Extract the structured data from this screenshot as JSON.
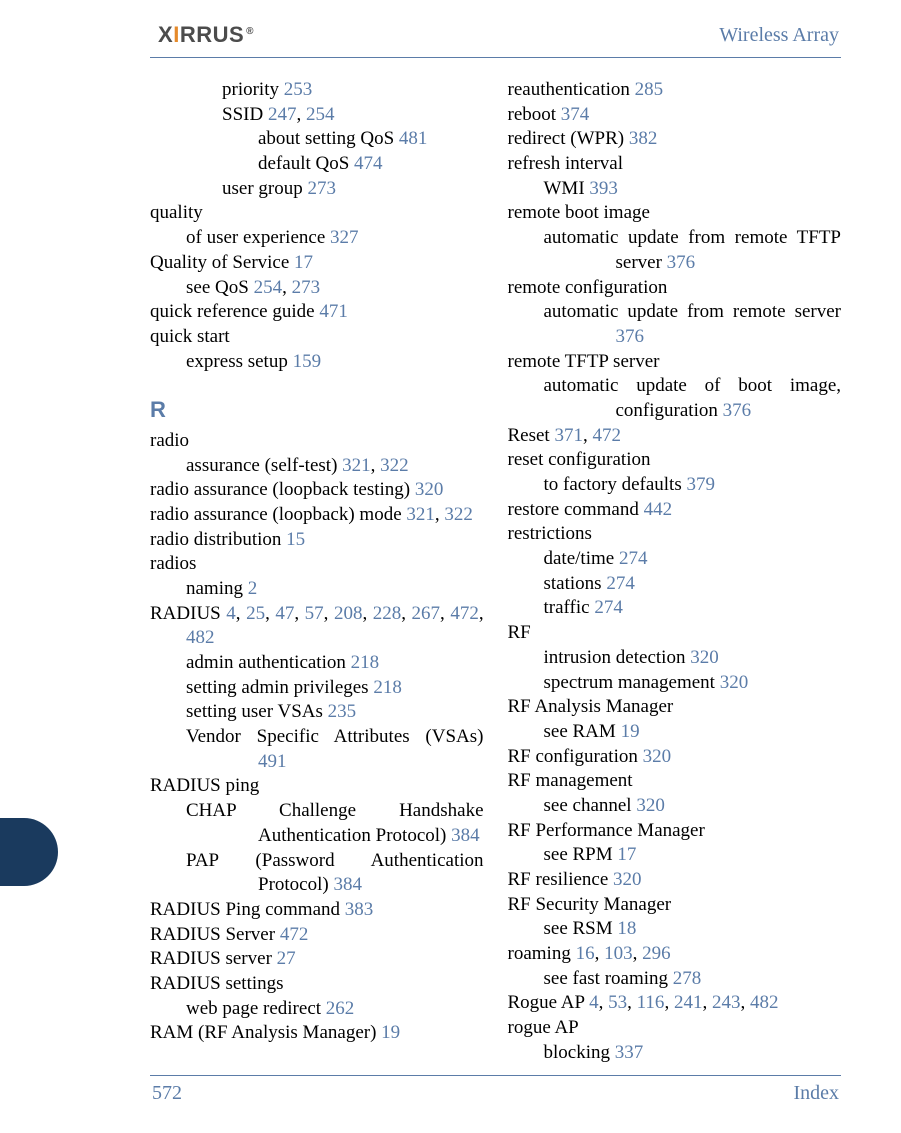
{
  "colors": {
    "link": "#5b7ca8",
    "text": "#000000",
    "logo_accent": "#e58a2b",
    "logo_gray": "#4c4c4c",
    "sidetab": "#1a3a5e",
    "rule": "#5b7ca8",
    "background": "#ffffff"
  },
  "typography": {
    "body_font": "Palatino, Georgia, serif",
    "body_size_pt": 14,
    "section_letter_size_pt": 16,
    "section_letter_weight": "bold"
  },
  "header": {
    "logo_text": "XIRRUS",
    "title": "Wireless Array"
  },
  "footer": {
    "page_number": "572",
    "label": "Index"
  },
  "section_letter": "R",
  "left_column": [
    {
      "cls": "e2",
      "parts": [
        {
          "t": "priority "
        },
        {
          "p": "253"
        }
      ]
    },
    {
      "cls": "e2",
      "parts": [
        {
          "t": "SSID "
        },
        {
          "p": "247"
        },
        {
          "t": ", "
        },
        {
          "p": "254"
        }
      ]
    },
    {
      "cls": "e2",
      "style": "margin-left:108px",
      "parts": [
        {
          "t": "about setting QoS "
        },
        {
          "p": "481"
        }
      ]
    },
    {
      "cls": "e2",
      "style": "margin-left:108px",
      "parts": [
        {
          "t": "default QoS "
        },
        {
          "p": "474"
        }
      ]
    },
    {
      "cls": "e2",
      "parts": [
        {
          "t": "user group "
        },
        {
          "p": "273"
        }
      ]
    },
    {
      "cls": "e0",
      "parts": [
        {
          "t": "quality"
        }
      ]
    },
    {
      "cls": "e1",
      "parts": [
        {
          "t": "of user experience "
        },
        {
          "p": "327"
        }
      ]
    },
    {
      "cls": "e0",
      "parts": [
        {
          "t": "Quality of Service "
        },
        {
          "p": "17"
        }
      ]
    },
    {
      "cls": "e1",
      "parts": [
        {
          "t": "see QoS "
        },
        {
          "p": "254"
        },
        {
          "t": ", "
        },
        {
          "p": "273"
        }
      ]
    },
    {
      "cls": "e0",
      "parts": [
        {
          "t": "quick reference guide "
        },
        {
          "p": "471"
        }
      ]
    },
    {
      "cls": "e0",
      "parts": [
        {
          "t": "quick start"
        }
      ]
    },
    {
      "cls": "e1",
      "parts": [
        {
          "t": "express setup "
        },
        {
          "p": "159"
        }
      ]
    },
    {
      "cls": "section-letter",
      "section": true
    },
    {
      "cls": "e0",
      "parts": [
        {
          "t": "radio"
        }
      ]
    },
    {
      "cls": "e1",
      "parts": [
        {
          "t": "assurance (self-test) "
        },
        {
          "p": "321"
        },
        {
          "t": ", "
        },
        {
          "p": "322"
        }
      ]
    },
    {
      "cls": "e0",
      "parts": [
        {
          "t": "radio assurance (loopback testing) "
        },
        {
          "p": "320"
        }
      ]
    },
    {
      "cls": "hangR",
      "parts": [
        {
          "t": "radio assurance (loopback) mode "
        },
        {
          "p": "321"
        },
        {
          "t": ", "
        },
        {
          "p": "322"
        }
      ]
    },
    {
      "cls": "e0",
      "parts": [
        {
          "t": "radio distribution "
        },
        {
          "p": "15"
        }
      ]
    },
    {
      "cls": "e0",
      "parts": [
        {
          "t": "radios"
        }
      ]
    },
    {
      "cls": "e1",
      "parts": [
        {
          "t": "naming "
        },
        {
          "p": "2"
        }
      ]
    },
    {
      "cls": "hangR",
      "parts": [
        {
          "t": "RADIUS "
        },
        {
          "p": "4"
        },
        {
          "t": ", "
        },
        {
          "p": "25"
        },
        {
          "t": ", "
        },
        {
          "p": "47"
        },
        {
          "t": ", "
        },
        {
          "p": "57"
        },
        {
          "t": ", "
        },
        {
          "p": "208"
        },
        {
          "t": ", "
        },
        {
          "p": "228"
        },
        {
          "t": ", "
        },
        {
          "p": "267"
        },
        {
          "t": ", "
        },
        {
          "p": "472"
        },
        {
          "t": ", "
        },
        {
          "p": "482"
        }
      ]
    },
    {
      "cls": "e1",
      "parts": [
        {
          "t": "admin authentication "
        },
        {
          "p": "218"
        }
      ]
    },
    {
      "cls": "e1",
      "parts": [
        {
          "t": "setting admin privileges "
        },
        {
          "p": "218"
        }
      ]
    },
    {
      "cls": "e1",
      "parts": [
        {
          "t": "setting user VSAs "
        },
        {
          "p": "235"
        }
      ]
    },
    {
      "cls": "hang1",
      "parts": [
        {
          "t": "Vendor Specific Attributes (VSAs) "
        },
        {
          "p": "491"
        }
      ]
    },
    {
      "cls": "e0",
      "parts": [
        {
          "t": "RADIUS ping"
        }
      ]
    },
    {
      "cls": "hang1",
      "parts": [
        {
          "t": "CHAP Challenge Handshake Authentication Protocol) "
        },
        {
          "p": "384"
        }
      ]
    },
    {
      "cls": "hang1",
      "parts": [
        {
          "t": "PAP (Password Authentication Protocol) "
        },
        {
          "p": "384"
        }
      ]
    },
    {
      "cls": "e0",
      "parts": [
        {
          "t": "RADIUS Ping command "
        },
        {
          "p": "383"
        }
      ]
    },
    {
      "cls": "e0",
      "parts": [
        {
          "t": "RADIUS Server "
        },
        {
          "p": "472"
        }
      ]
    },
    {
      "cls": "e0",
      "parts": [
        {
          "t": "RADIUS server "
        },
        {
          "p": "27"
        }
      ]
    },
    {
      "cls": "e0",
      "parts": [
        {
          "t": "RADIUS settings"
        }
      ]
    },
    {
      "cls": "e1",
      "parts": [
        {
          "t": "web page redirect "
        },
        {
          "p": "262"
        }
      ]
    },
    {
      "cls": "e0",
      "parts": [
        {
          "t": "RAM (RF Analysis Manager) "
        },
        {
          "p": "19"
        }
      ]
    }
  ],
  "right_column": [
    {
      "cls": "e0",
      "parts": [
        {
          "t": "reauthentication "
        },
        {
          "p": "285"
        }
      ]
    },
    {
      "cls": "e0",
      "parts": [
        {
          "t": "reboot "
        },
        {
          "p": "374"
        }
      ]
    },
    {
      "cls": "e0",
      "parts": [
        {
          "t": "redirect (WPR) "
        },
        {
          "p": "382"
        }
      ]
    },
    {
      "cls": "e0",
      "parts": [
        {
          "t": "refresh interval"
        }
      ]
    },
    {
      "cls": "e1",
      "parts": [
        {
          "t": "WMI "
        },
        {
          "p": "393"
        }
      ]
    },
    {
      "cls": "e0",
      "parts": [
        {
          "t": "remote boot image"
        }
      ]
    },
    {
      "cls": "hang1",
      "parts": [
        {
          "t": "automatic update from remote TFTP server "
        },
        {
          "p": "376"
        }
      ]
    },
    {
      "cls": "e0",
      "parts": [
        {
          "t": "remote configuration"
        }
      ]
    },
    {
      "cls": "hang1",
      "parts": [
        {
          "t": "automatic update from remote server "
        },
        {
          "p": "376"
        }
      ]
    },
    {
      "cls": "e0",
      "parts": [
        {
          "t": "remote TFTP server"
        }
      ]
    },
    {
      "cls": "hang1",
      "parts": [
        {
          "t": "automatic update of boot image, configuration "
        },
        {
          "p": "376"
        }
      ]
    },
    {
      "cls": "e0",
      "parts": [
        {
          "t": "Reset "
        },
        {
          "p": "371"
        },
        {
          "t": ", "
        },
        {
          "p": "472"
        }
      ]
    },
    {
      "cls": "e0",
      "parts": [
        {
          "t": "reset configuration"
        }
      ]
    },
    {
      "cls": "e1",
      "parts": [
        {
          "t": "to factory defaults "
        },
        {
          "p": "379"
        }
      ]
    },
    {
      "cls": "e0",
      "parts": [
        {
          "t": "restore command "
        },
        {
          "p": "442"
        }
      ]
    },
    {
      "cls": "e0",
      "parts": [
        {
          "t": "restrictions"
        }
      ]
    },
    {
      "cls": "e1",
      "parts": [
        {
          "t": "date/time "
        },
        {
          "p": "274"
        }
      ]
    },
    {
      "cls": "e1",
      "parts": [
        {
          "t": "stations "
        },
        {
          "p": "274"
        }
      ]
    },
    {
      "cls": "e1",
      "parts": [
        {
          "t": "traffic "
        },
        {
          "p": "274"
        }
      ]
    },
    {
      "cls": "e0",
      "parts": [
        {
          "t": "RF"
        }
      ]
    },
    {
      "cls": "e1",
      "parts": [
        {
          "t": "intrusion detection "
        },
        {
          "p": "320"
        }
      ]
    },
    {
      "cls": "e1",
      "parts": [
        {
          "t": "spectrum management "
        },
        {
          "p": "320"
        }
      ]
    },
    {
      "cls": "e0",
      "parts": [
        {
          "t": "RF Analysis Manager"
        }
      ]
    },
    {
      "cls": "e1",
      "parts": [
        {
          "t": "see RAM "
        },
        {
          "p": "19"
        }
      ]
    },
    {
      "cls": "e0",
      "parts": [
        {
          "t": "RF configuration "
        },
        {
          "p": "320"
        }
      ]
    },
    {
      "cls": "e0",
      "parts": [
        {
          "t": "RF management"
        }
      ]
    },
    {
      "cls": "e1",
      "parts": [
        {
          "t": "see channel "
        },
        {
          "p": "320"
        }
      ]
    },
    {
      "cls": "e0",
      "parts": [
        {
          "t": "RF Performance Manager"
        }
      ]
    },
    {
      "cls": "e1",
      "parts": [
        {
          "t": "see RPM "
        },
        {
          "p": "17"
        }
      ]
    },
    {
      "cls": "e0",
      "parts": [
        {
          "t": "RF resilience "
        },
        {
          "p": "320"
        }
      ]
    },
    {
      "cls": "e0",
      "parts": [
        {
          "t": "RF Security Manager"
        }
      ]
    },
    {
      "cls": "e1",
      "parts": [
        {
          "t": "see RSM "
        },
        {
          "p": "18"
        }
      ]
    },
    {
      "cls": "e0",
      "parts": [
        {
          "t": "roaming "
        },
        {
          "p": "16"
        },
        {
          "t": ", "
        },
        {
          "p": "103"
        },
        {
          "t": ", "
        },
        {
          "p": "296"
        }
      ]
    },
    {
      "cls": "e1",
      "parts": [
        {
          "t": "see fast roaming "
        },
        {
          "p": "278"
        }
      ]
    },
    {
      "cls": "e0",
      "parts": [
        {
          "t": "Rogue AP "
        },
        {
          "p": "4"
        },
        {
          "t": ", "
        },
        {
          "p": "53"
        },
        {
          "t": ", "
        },
        {
          "p": "116"
        },
        {
          "t": ", "
        },
        {
          "p": "241"
        },
        {
          "t": ", "
        },
        {
          "p": "243"
        },
        {
          "t": ", "
        },
        {
          "p": "482"
        }
      ]
    },
    {
      "cls": "e0",
      "parts": [
        {
          "t": "rogue AP"
        }
      ]
    },
    {
      "cls": "e1",
      "parts": [
        {
          "t": "blocking "
        },
        {
          "p": "337"
        }
      ]
    }
  ]
}
